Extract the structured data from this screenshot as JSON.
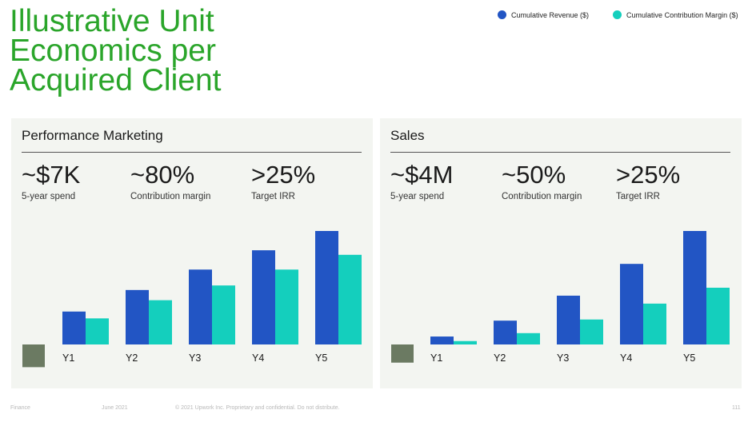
{
  "header": {
    "title_lines": [
      "Illustrative Unit",
      "Economics per",
      "Acquired Client"
    ]
  },
  "legend": [
    {
      "label": "Cumulative Revenue ($)",
      "color": "#2255c4"
    },
    {
      "label": "Cumulative Contribution Margin ($)",
      "color": "#14cfbd"
    }
  ],
  "colors": {
    "title": "#2aa52a",
    "panel_bg": "#f3f5f1",
    "revenue": "#2255c4",
    "margin": "#14cfbd",
    "spend_block": "#6b7a62"
  },
  "panels": [
    {
      "title": "Performance Marketing",
      "stats": [
        {
          "value": "~$7K",
          "label": "5-year spend"
        },
        {
          "value": "~80%",
          "label": "Contribution margin"
        },
        {
          "value": ">25%",
          "label": "Target IRR"
        }
      ]
    },
    {
      "title": "Sales",
      "stats": [
        {
          "value": "~$4M",
          "label": "5-year spend"
        },
        {
          "value": "~50%",
          "label": "Contribution margin"
        },
        {
          "value": ">25%",
          "label": "Target IRR"
        }
      ]
    }
  ],
  "chart_data": [
    {
      "type": "bar",
      "title": "Performance Marketing",
      "categories": [
        "Y1",
        "Y2",
        "Y3",
        "Y4",
        "Y5"
      ],
      "series": [
        {
          "name": "Cumulative Revenue ($)",
          "values": [
            29,
            48,
            66,
            83,
            100
          ]
        },
        {
          "name": "Cumulative Contribution Margin ($)",
          "values": [
            23,
            39,
            52,
            66,
            79
          ]
        }
      ],
      "spend_block": -20,
      "ylim": [
        -30,
        110
      ],
      "grid": false,
      "legend": "top-right"
    },
    {
      "type": "bar",
      "title": "Sales",
      "categories": [
        "Y1",
        "Y2",
        "Y3",
        "Y4",
        "Y5"
      ],
      "series": [
        {
          "name": "Cumulative Revenue ($)",
          "values": [
            7,
            21,
            43,
            71,
            100
          ]
        },
        {
          "name": "Cumulative Contribution Margin ($)",
          "values": [
            3,
            10,
            22,
            36,
            50
          ]
        }
      ],
      "spend_block": -16,
      "ylim": [
        -30,
        110
      ],
      "grid": false,
      "legend": "top-right"
    }
  ],
  "footer": {
    "section": "Finance",
    "date": "June 2021",
    "notice": "© 2021 Upwork Inc. Proprietary and confidential. Do not distribute.",
    "page": "111"
  }
}
